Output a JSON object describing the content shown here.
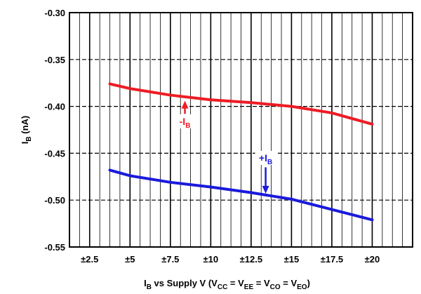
{
  "chart_data": {
    "type": "line",
    "xlim": [
      1.25,
      22.5
    ],
    "ylim": [
      -0.55,
      -0.3
    ],
    "x_ticks": [
      2.5,
      5,
      7.5,
      10,
      12.5,
      15,
      17.5,
      20
    ],
    "x_tick_labels": [
      "±2.5",
      "±5",
      "±7.5",
      "±10",
      "±12.5",
      "±15",
      "±17.5",
      "±20"
    ],
    "x_minor_step": 0.625,
    "y_ticks": [
      -0.3,
      -0.35,
      -0.4,
      -0.45,
      -0.5,
      -0.55
    ],
    "y_tick_labels": [
      "-0.30",
      "-0.35",
      "-0.40",
      "-0.45",
      "-0.50",
      "-0.55"
    ],
    "grid": true,
    "ylabel": {
      "main": "I",
      "sub": "B",
      "rest": " (nA)"
    },
    "xlabel": {
      "parts": [
        {
          "t": "I",
          "sub": false
        },
        {
          "t": "B",
          "sub": true
        },
        {
          "t": " vs Supply V (V",
          "sub": false
        },
        {
          "t": "CC",
          "sub": true
        },
        {
          "t": " = V",
          "sub": false
        },
        {
          "t": "EE",
          "sub": true
        },
        {
          "t": " = V",
          "sub": false
        },
        {
          "t": "CO",
          "sub": true
        },
        {
          "t": " = V",
          "sub": false
        },
        {
          "t": "EO",
          "sub": true
        },
        {
          "t": ")",
          "sub": false
        }
      ]
    },
    "series": [
      {
        "label_sign": "-",
        "label_main": "I",
        "label_sub": "B",
        "color": "#ee1c24",
        "x": [
          3.75,
          5,
          7.5,
          10,
          12.5,
          15,
          17.5,
          20
        ],
        "y": [
          -0.376,
          -0.381,
          -0.388,
          -0.393,
          -0.396,
          -0.4,
          -0.407,
          -0.419
        ],
        "annotation": {
          "x": 8.4,
          "y": -0.416,
          "arrow_from_y": -0.408,
          "arrow_to_y": -0.394,
          "dir": "up"
        }
      },
      {
        "label_sign": "+",
        "label_main": "I",
        "label_sub": "B",
        "color": "#1a1adc",
        "x": [
          3.75,
          5,
          7.5,
          10,
          12.5,
          15,
          17.5,
          20
        ],
        "y": [
          -0.468,
          -0.474,
          -0.481,
          -0.486,
          -0.492,
          -0.499,
          -0.51,
          -0.521
        ],
        "annotation": {
          "x": 13.4,
          "y": -0.455,
          "arrow_from_y": -0.465,
          "arrow_to_y": -0.493,
          "dir": "down"
        }
      }
    ]
  }
}
